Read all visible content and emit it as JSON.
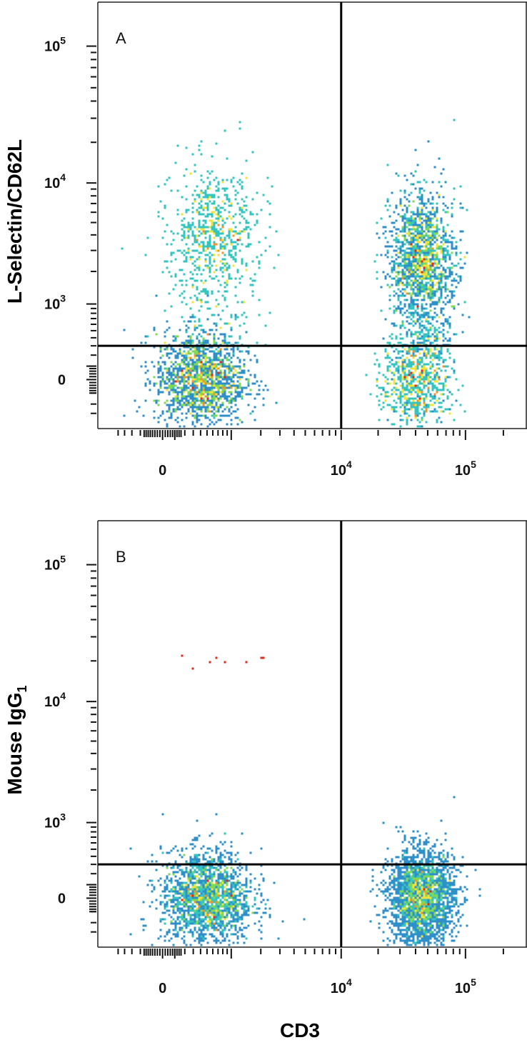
{
  "chart_data": [
    {
      "type": "scatter",
      "panel_label": "A",
      "xlabel": "CD3",
      "ylabel": "L-Selectin/CD62L",
      "x_scale": "biexponential",
      "y_scale": "biexponential",
      "x_ticks": [
        {
          "base": "0",
          "exp": ""
        },
        {
          "base": "10",
          "exp": "4"
        },
        {
          "base": "10",
          "exp": "5"
        }
      ],
      "y_ticks": [
        {
          "base": "0",
          "exp": ""
        },
        {
          "base": "10",
          "exp": "3"
        },
        {
          "base": "10",
          "exp": "4"
        },
        {
          "base": "10",
          "exp": "5"
        }
      ],
      "quadrant_gate": {
        "x": 10000,
        "y": 300
      },
      "populations": [
        {
          "quadrant": "upper-left",
          "center": [
            600,
            5000
          ],
          "n": 900
        },
        {
          "quadrant": "lower-left",
          "center": [
            400,
            0
          ],
          "n": 1500
        },
        {
          "quadrant": "upper-right",
          "center": [
            45000,
            3000
          ],
          "n": 2300
        },
        {
          "quadrant": "lower-right",
          "center": [
            40000,
            0
          ],
          "n": 700
        }
      ],
      "colormap": [
        "#2b4fa0",
        "#2f8fc8",
        "#35c5c0",
        "#7ed957",
        "#f2e33a",
        "#f3942b",
        "#e02a1c"
      ]
    },
    {
      "type": "scatter",
      "panel_label": "B",
      "xlabel": "CD3",
      "ylabel": "Mouse IgG",
      "ylabel_subscript": "1",
      "x_scale": "biexponential",
      "y_scale": "biexponential",
      "x_ticks": [
        {
          "base": "0",
          "exp": ""
        },
        {
          "base": "10",
          "exp": "4"
        },
        {
          "base": "10",
          "exp": "5"
        }
      ],
      "y_ticks": [
        {
          "base": "0",
          "exp": ""
        },
        {
          "base": "10",
          "exp": "3"
        },
        {
          "base": "10",
          "exp": "4"
        },
        {
          "base": "10",
          "exp": "5"
        }
      ],
      "quadrant_gate": {
        "x": 10000,
        "y": 300
      },
      "populations": [
        {
          "quadrant": "lower-left",
          "center": [
            500,
            0
          ],
          "n": 1900
        },
        {
          "quadrant": "lower-right",
          "center": [
            45000,
            0
          ],
          "n": 2600
        },
        {
          "quadrant": "upper-left",
          "center": [
            800,
            20000
          ],
          "n": 8
        }
      ],
      "colormap": [
        "#2b4fa0",
        "#2f8fc8",
        "#35c5c0",
        "#7ed957",
        "#f2e33a",
        "#f3942b",
        "#e02a1c"
      ]
    }
  ]
}
